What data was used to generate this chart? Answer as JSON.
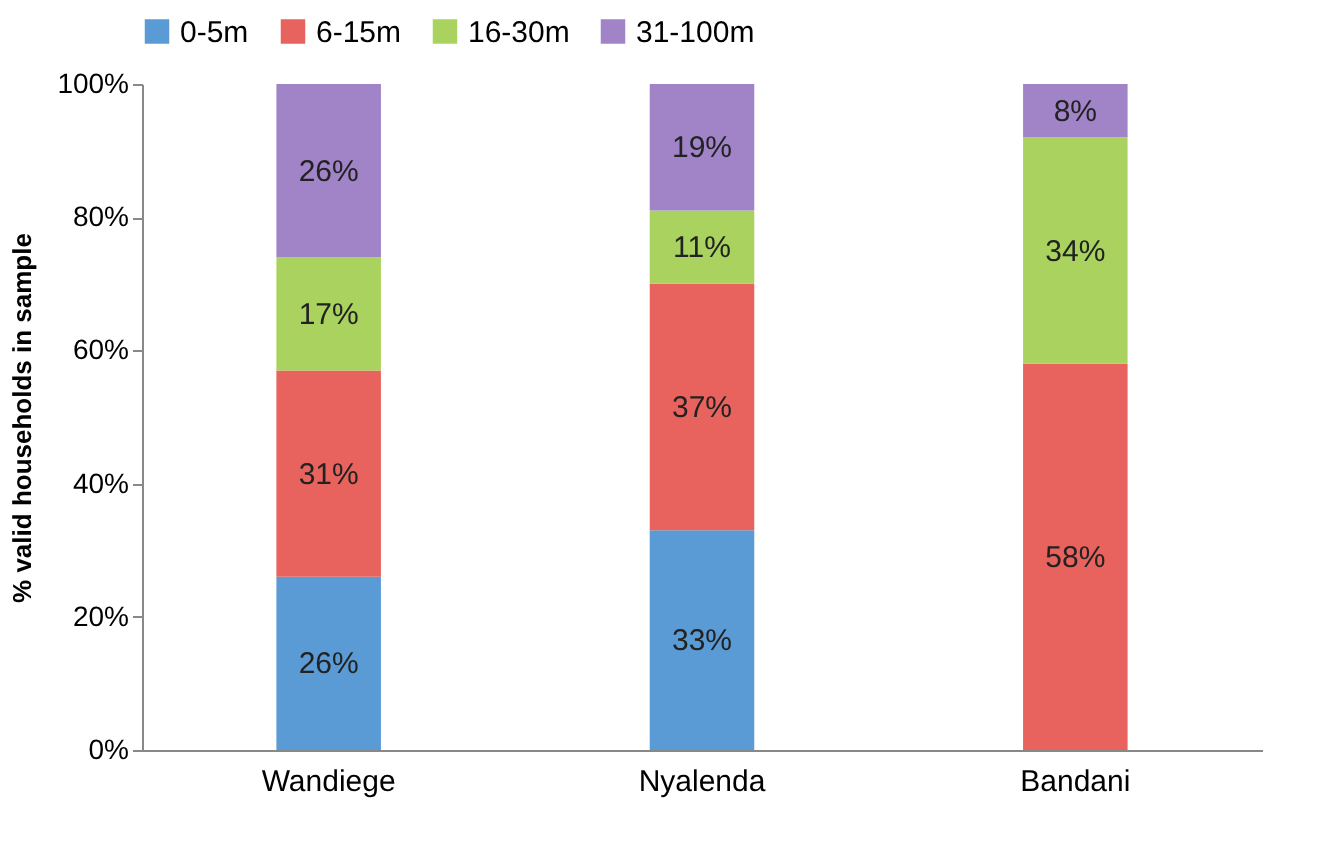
{
  "chart_data": {
    "type": "bar",
    "stacked": true,
    "ylabel": "% valid households in sample",
    "categories": [
      "Wandiege",
      "Nyalenda",
      "Bandani"
    ],
    "series": [
      {
        "name": "0-5m",
        "color": "#5b9bd5",
        "values": [
          26,
          33,
          0
        ],
        "value_labels": [
          "26%",
          "33%",
          null
        ]
      },
      {
        "name": "6-15m",
        "color": "#e8635d",
        "values": [
          31,
          37,
          58
        ],
        "value_labels": [
          "31%",
          "37%",
          "58%"
        ]
      },
      {
        "name": "16-30m",
        "color": "#a9d35e",
        "values": [
          17,
          11,
          34
        ],
        "value_labels": [
          "17%",
          "11%",
          "34%"
        ]
      },
      {
        "name": "31-100m",
        "color": "#a184c8",
        "values": [
          26,
          19,
          8
        ],
        "value_labels": [
          "26%",
          "19%",
          "8%"
        ]
      }
    ],
    "ylim": [
      0,
      100
    ],
    "yticks": [
      {
        "value": 0,
        "label": "0%"
      },
      {
        "value": 20,
        "label": "20%"
      },
      {
        "value": 40,
        "label": "40%"
      },
      {
        "value": 60,
        "label": "60%"
      },
      {
        "value": 80,
        "label": "80%"
      },
      {
        "value": 100,
        "label": "100%"
      }
    ],
    "legend": "top",
    "grid": false
  }
}
